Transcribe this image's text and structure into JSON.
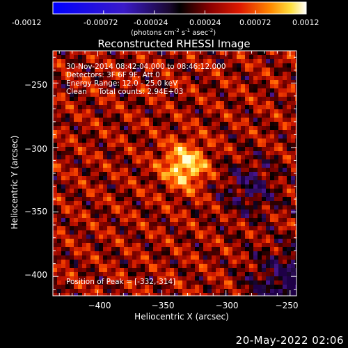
{
  "colorbar": {
    "ticks": [
      "-0.0012",
      "-0.00072",
      "-0.00024",
      "0.00024",
      "0.00072",
      "0.0012"
    ],
    "units_label": "(photons cm",
    "units_exp1": "-2",
    "units_mid": " s",
    "units_exp2": "-1",
    "units_end": " asec",
    "units_exp3": "-2",
    "units_close": ")",
    "range": [
      -0.0012,
      0.0012
    ]
  },
  "plot": {
    "title": "Reconstructed RHESSI Image",
    "info_lines": [
      "30-Nov-2014 08:42:04.000 to 08:46:12.000",
      "Detectors: 3F 6F 9F, Att 0",
      "Energy Range: 12.0 - 25.0 keV",
      "Clean     Total counts: 2.94E+03"
    ],
    "peak_label": "Position of Peak = [-332,-314]"
  },
  "footer": {
    "date": "20-May-2022 02:06"
  },
  "chart_data": {
    "type": "heatmap",
    "title": "Reconstructed RHESSI Image",
    "xlabel": "Heliocentric X (arcsec)",
    "ylabel": "Heliocentric Y (arcsec)",
    "xlim": [
      -435,
      -245
    ],
    "ylim": [
      -415,
      -225
    ],
    "x_ticks": [
      -400,
      -350,
      -300,
      -250
    ],
    "y_ticks": [
      -250,
      -300,
      -350,
      -400
    ],
    "x_tick_labels": [
      "−400",
      "−350",
      "−300",
      "−250"
    ],
    "y_tick_labels": [
      "−250",
      "−300",
      "−350",
      "−400"
    ],
    "peak": [
      -332,
      -314
    ],
    "colormap": "red-temperature",
    "value_range": [
      -0.0012,
      0.0012
    ]
  }
}
